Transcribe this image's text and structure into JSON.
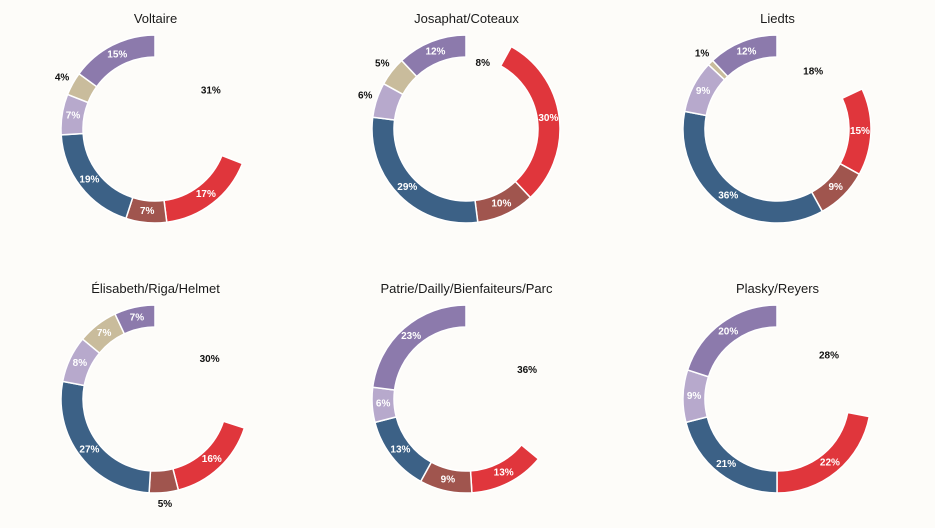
{
  "chart_data": [
    {
      "type": "pie",
      "title": "Voltaire",
      "slices": [
        {
          "value": 31,
          "label": "31%",
          "color": null
        },
        {
          "value": 17,
          "label": "17%",
          "color": "#e0363c"
        },
        {
          "value": 7,
          "label": "7%",
          "color": "#a0554e"
        },
        {
          "value": 19,
          "label": "19%",
          "color": "#3c6186"
        },
        {
          "value": 7,
          "label": "7%",
          "color": "#b7a9cc"
        },
        {
          "value": 4,
          "label": "4%",
          "color": "#c9bc9c"
        },
        {
          "value": 15,
          "label": "15%",
          "color": "#8c7aac"
        }
      ]
    },
    {
      "type": "pie",
      "title": "Josaphat/Coteaux",
      "slices": [
        {
          "value": 8,
          "label": "8%",
          "color": null
        },
        {
          "value": 30,
          "label": "30%",
          "color": "#e0363c"
        },
        {
          "value": 10,
          "label": "10%",
          "color": "#a0554e"
        },
        {
          "value": 29,
          "label": "29%",
          "color": "#3c6186"
        },
        {
          "value": 6,
          "label": "6%",
          "color": "#b7a9cc"
        },
        {
          "value": 5,
          "label": "5%",
          "color": "#c9bc9c"
        },
        {
          "value": 12,
          "label": "12%",
          "color": "#8c7aac"
        }
      ]
    },
    {
      "type": "pie",
      "title": "Liedts",
      "slices": [
        {
          "value": 18,
          "label": "18%",
          "color": null
        },
        {
          "value": 15,
          "label": "15%",
          "color": "#e0363c"
        },
        {
          "value": 9,
          "label": "9%",
          "color": "#a0554e"
        },
        {
          "value": 36,
          "label": "36%",
          "color": "#3c6186"
        },
        {
          "value": 9,
          "label": "9%",
          "color": "#b7a9cc"
        },
        {
          "value": 1,
          "label": "1%",
          "color": "#c9bc9c"
        },
        {
          "value": 12,
          "label": "12%",
          "color": "#8c7aac"
        }
      ]
    },
    {
      "type": "pie",
      "title": "Élisabeth/Riga/Helmet",
      "slices": [
        {
          "value": 30,
          "label": "30%",
          "color": null
        },
        {
          "value": 16,
          "label": "16%",
          "color": "#e0363c"
        },
        {
          "value": 5,
          "label": "5%",
          "color": "#a0554e"
        },
        {
          "value": 27,
          "label": "27%",
          "color": "#3c6186"
        },
        {
          "value": 8,
          "label": "8%",
          "color": "#b7a9cc"
        },
        {
          "value": 7,
          "label": "7%",
          "color": "#c9bc9c"
        },
        {
          "value": 7,
          "label": "7%",
          "color": "#8c7aac"
        }
      ]
    },
    {
      "type": "pie",
      "title": "Patrie/Dailly/Bienfaiteurs/Parc",
      "slices": [
        {
          "value": 36,
          "label": "36%",
          "color": null
        },
        {
          "value": 13,
          "label": "13%",
          "color": "#e0363c"
        },
        {
          "value": 9,
          "label": "9%",
          "color": "#a0554e"
        },
        {
          "value": 13,
          "label": "13%",
          "color": "#3c6186"
        },
        {
          "value": 6,
          "label": "6%",
          "color": "#b7a9cc"
        },
        {
          "value": 23,
          "label": "23%",
          "color": "#8c7aac"
        }
      ]
    },
    {
      "type": "pie",
      "title": "Plasky/Reyers",
      "slices": [
        {
          "value": 28,
          "label": "28%",
          "color": null
        },
        {
          "value": 22,
          "label": "22%",
          "color": "#e0363c"
        },
        {
          "value": 21,
          "label": "21%",
          "color": "#3c6186"
        },
        {
          "value": 9,
          "label": "9%",
          "color": "#b7a9cc"
        },
        {
          "value": 20,
          "label": "20%",
          "color": "#8c7aac"
        }
      ]
    }
  ]
}
